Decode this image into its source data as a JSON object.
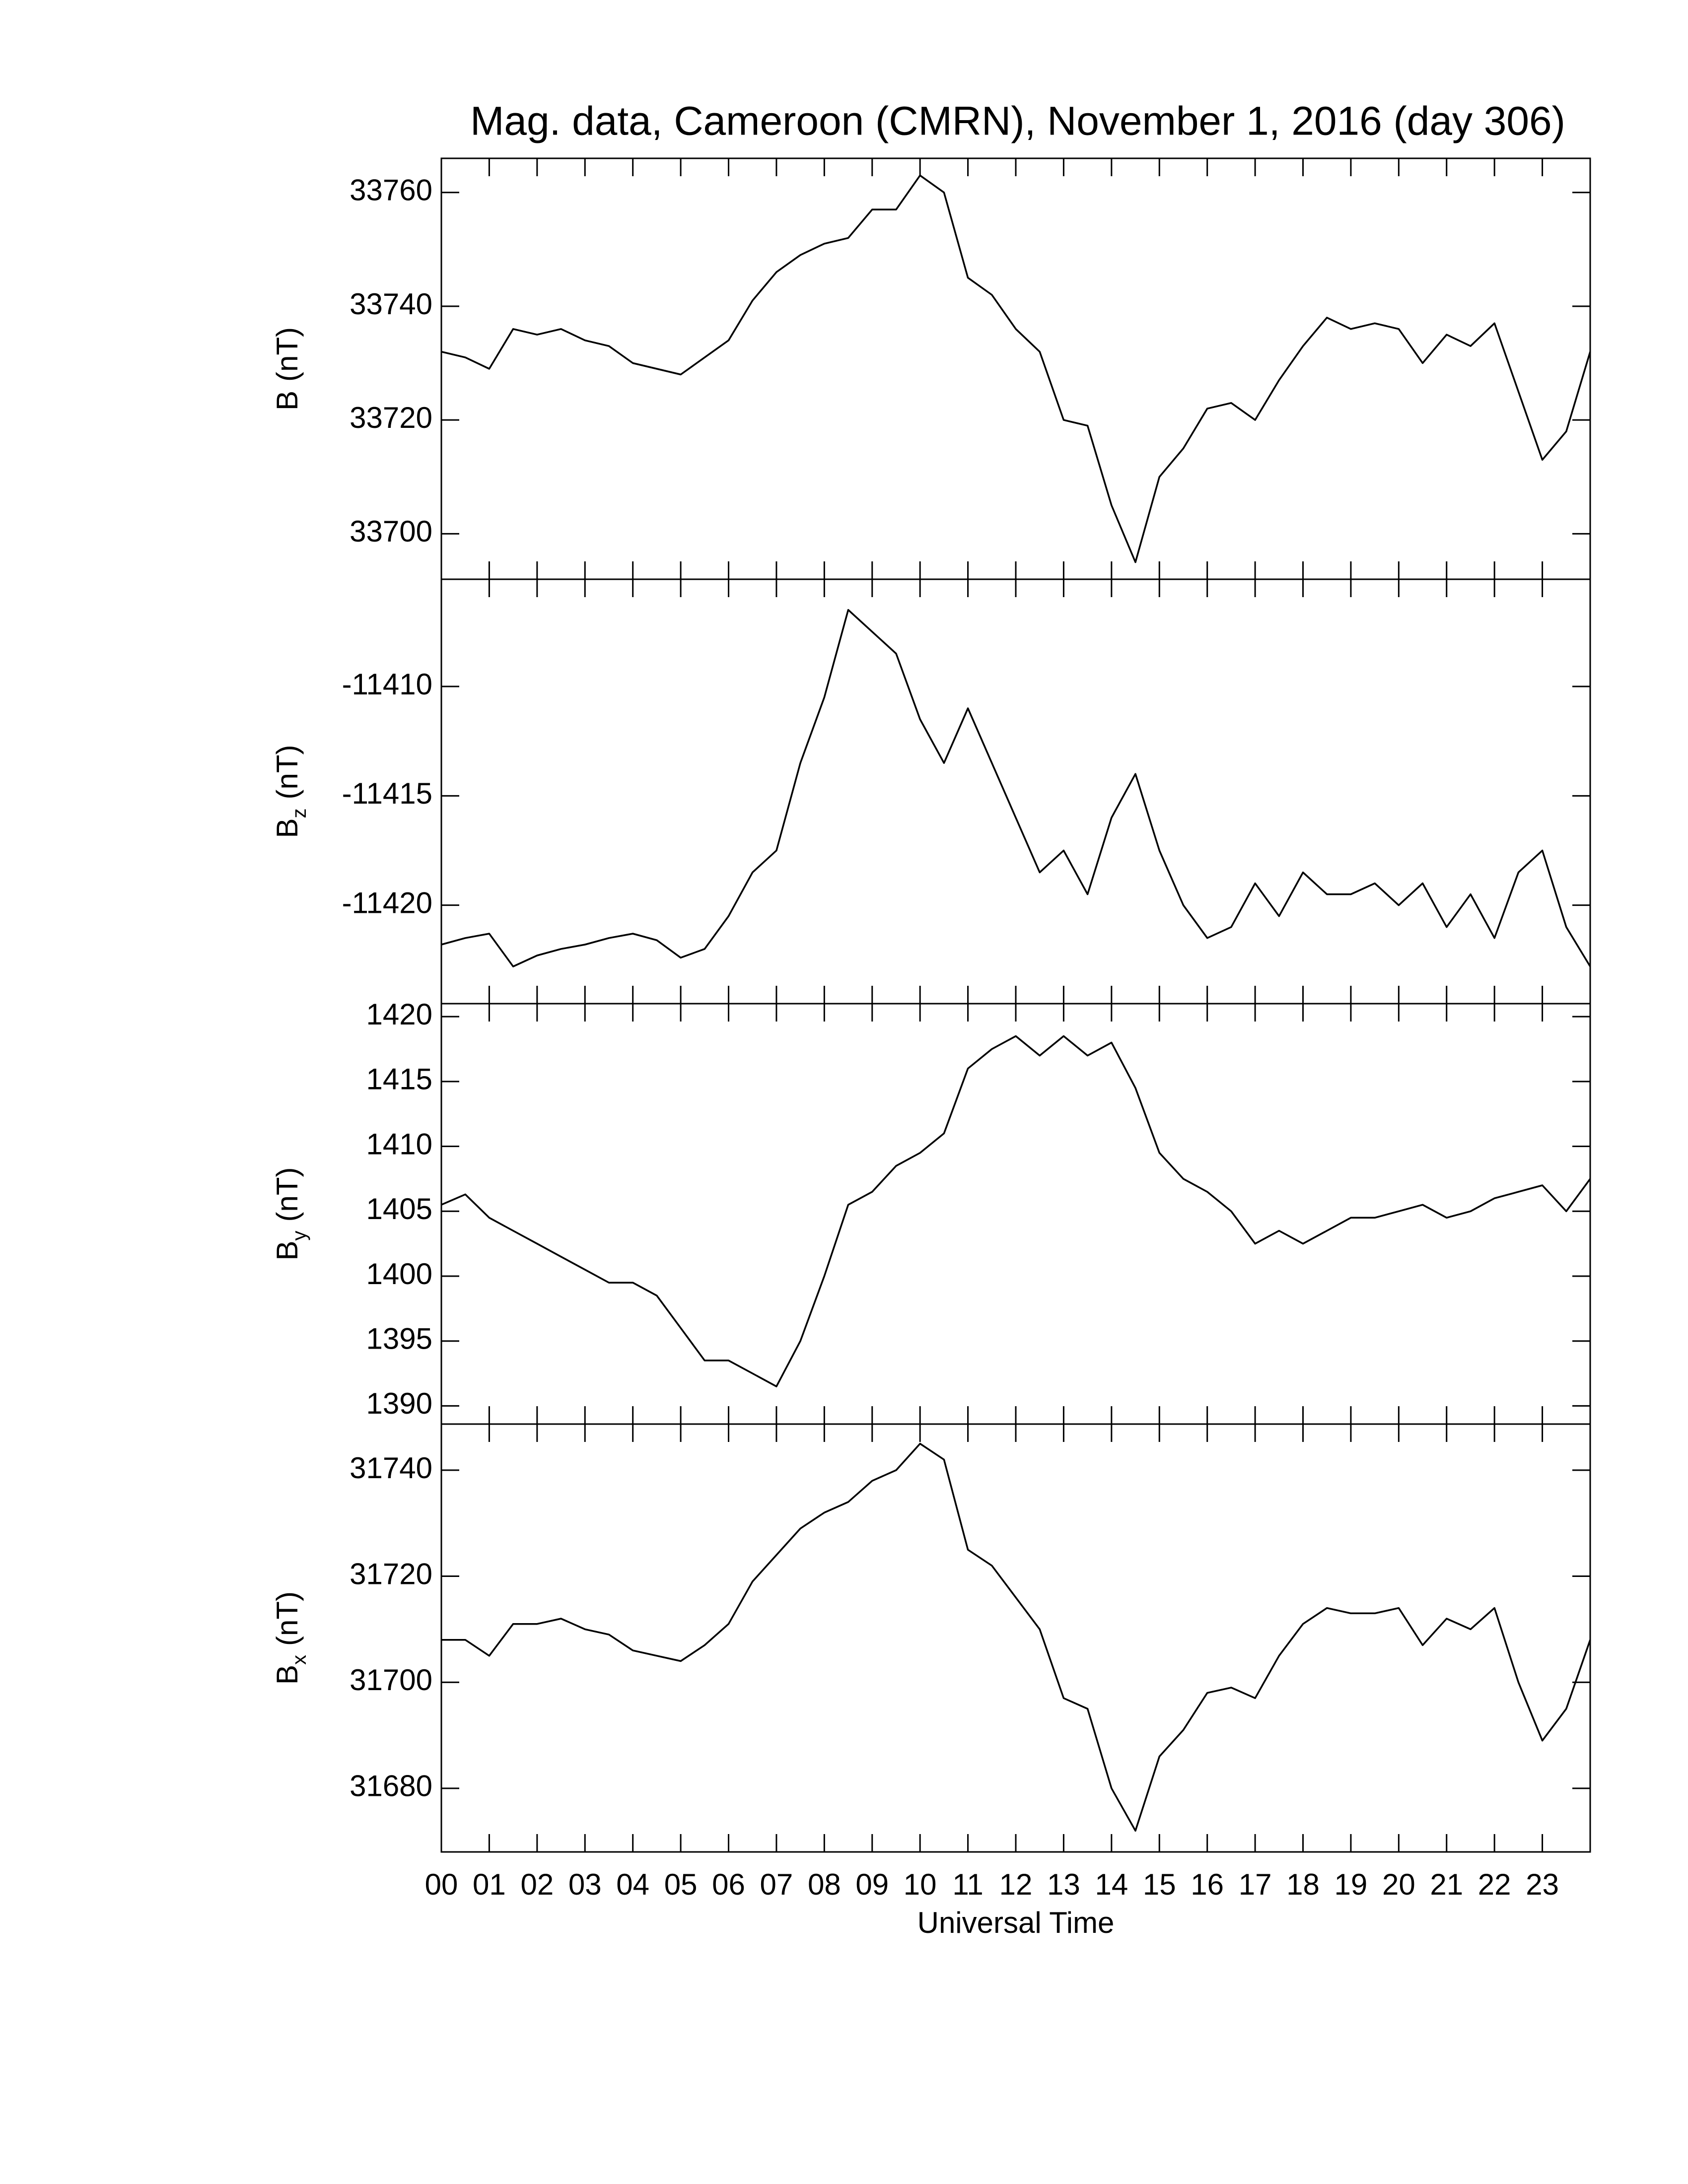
{
  "chart_data": [
    {
      "type": "line",
      "title": "Mag. data, Cameroon (CMRN), November 1, 2016 (day 306)",
      "ylabel": "B",
      "ylabel_unit": "(nT)",
      "color": "#000000",
      "x": [
        0,
        0.5,
        1,
        1.5,
        2,
        2.5,
        3,
        3.5,
        4,
        4.5,
        5,
        5.5,
        6,
        6.5,
        7,
        7.5,
        8,
        8.5,
        9,
        9.5,
        10,
        10.5,
        11,
        11.5,
        12,
        12.5,
        13,
        13.5,
        14,
        14.5,
        15,
        15.5,
        16,
        16.5,
        17,
        17.5,
        18,
        18.5,
        19,
        19.5,
        20,
        20.5,
        21,
        21.5,
        22,
        22.5,
        23,
        23.5,
        24
      ],
      "values": [
        33732,
        33731,
        33729,
        33736,
        33735,
        33736,
        33734,
        33733,
        33730,
        33729,
        33728,
        33731,
        33734,
        33741,
        33746,
        33749,
        33751,
        33752,
        33757,
        33757,
        33763,
        33760,
        33745,
        33742,
        33736,
        33732,
        33720,
        33719,
        33705,
        33695,
        33710,
        33715,
        33722,
        33723,
        33720,
        33727,
        33733,
        33738,
        33736,
        33737,
        33736,
        33730,
        33735,
        33733,
        33737,
        33725,
        33713,
        33718,
        33732
      ],
      "xlim": [
        0,
        24
      ],
      "ylim": [
        33692,
        33766
      ],
      "yticks": [
        33700,
        33720,
        33740,
        33760
      ]
    },
    {
      "type": "line",
      "ylabel": "B",
      "ylabel_subscript": "z",
      "ylabel_unit": "(nT)",
      "color": "#000000",
      "x": [
        0,
        0.5,
        1,
        1.5,
        2,
        2.5,
        3,
        3.5,
        4,
        4.5,
        5,
        5.5,
        6,
        6.5,
        7,
        7.5,
        8,
        8.5,
        9,
        9.5,
        10,
        10.5,
        11,
        11.5,
        12,
        12.5,
        13,
        13.5,
        14,
        14.5,
        15,
        15.5,
        16,
        16.5,
        17,
        17.5,
        18,
        18.5,
        19,
        19.5,
        20,
        20.5,
        21,
        21.5,
        22,
        22.5,
        23,
        23.5,
        24
      ],
      "values": [
        -11421.8,
        -11421.5,
        -11421.3,
        -11422.8,
        -11422.3,
        -11422,
        -11421.8,
        -11421.5,
        -11421.3,
        -11421.6,
        -11422.4,
        -11422,
        -11420.5,
        -11418.5,
        -11417.5,
        -11413.5,
        -11410.5,
        -11406.5,
        -11407.5,
        -11408.5,
        -11411.5,
        -11413.5,
        -11411,
        -11413.5,
        -11416,
        -11418.5,
        -11417.5,
        -11419.5,
        -11416,
        -11414,
        -11417.5,
        -11420,
        -11421.5,
        -11421,
        -11419,
        -11420.5,
        -11418.5,
        -11419.5,
        -11419.5,
        -11419,
        -11420,
        -11419,
        -11421,
        -11419.5,
        -11421.5,
        -11418.5,
        -11417.5,
        -11421,
        -11422.8
      ],
      "xlim": [
        0,
        24
      ],
      "ylim": [
        -11424.5,
        -11405.1
      ],
      "yticks": [
        -11420,
        -11415,
        -11410
      ]
    },
    {
      "type": "line",
      "ylabel": "B",
      "ylabel_subscript": "y",
      "ylabel_unit": "(nT)",
      "color": "#000000",
      "x": [
        0,
        0.5,
        1,
        1.5,
        2,
        2.5,
        3,
        3.5,
        4,
        4.5,
        5,
        5.5,
        6,
        6.5,
        7,
        7.5,
        8,
        8.5,
        9,
        9.5,
        10,
        10.5,
        11,
        11.5,
        12,
        12.5,
        13,
        13.5,
        14,
        14.5,
        15,
        15.5,
        16,
        16.5,
        17,
        17.5,
        18,
        18.5,
        19,
        19.5,
        20,
        20.5,
        21,
        21.5,
        22,
        22.5,
        23,
        23.5,
        24
      ],
      "values": [
        1405.5,
        1406.3,
        1404.5,
        1403.5,
        1402.5,
        1401.5,
        1400.5,
        1399.5,
        1399.5,
        1398.5,
        1396,
        1393.5,
        1393.5,
        1392.5,
        1391.5,
        1395,
        1400,
        1405.5,
        1406.5,
        1408.5,
        1409.5,
        1411,
        1416,
        1417.5,
        1418.5,
        1417,
        1418.5,
        1417,
        1418,
        1414.5,
        1409.5,
        1407.5,
        1406.5,
        1405,
        1402.5,
        1403.5,
        1402.5,
        1403.5,
        1404.5,
        1404.5,
        1405,
        1405.5,
        1404.5,
        1405,
        1406,
        1406.5,
        1407,
        1405,
        1407.5
      ],
      "xlim": [
        0,
        24
      ],
      "ylim": [
        1388.6,
        1421
      ],
      "yticks": [
        1390,
        1395,
        1400,
        1405,
        1410,
        1415,
        1420
      ]
    },
    {
      "type": "line",
      "ylabel": "B",
      "ylabel_subscript": "x",
      "ylabel_unit": "(nT)",
      "xlabel": "Universal Time",
      "color": "#000000",
      "x": [
        0,
        0.5,
        1,
        1.5,
        2,
        2.5,
        3,
        3.5,
        4,
        4.5,
        5,
        5.5,
        6,
        6.5,
        7,
        7.5,
        8,
        8.5,
        9,
        9.5,
        10,
        10.5,
        11,
        11.5,
        12,
        12.5,
        13,
        13.5,
        14,
        14.5,
        15,
        15.5,
        16,
        16.5,
        17,
        17.5,
        18,
        18.5,
        19,
        19.5,
        20,
        20.5,
        21,
        21.5,
        22,
        22.5,
        23,
        23.5,
        24
      ],
      "values": [
        31708,
        31708,
        31705,
        31711,
        31711,
        31712,
        31710,
        31709,
        31706,
        31705,
        31704,
        31707,
        31711,
        31719,
        31724,
        31729,
        31732,
        31734,
        31738,
        31740,
        31745,
        31742,
        31725,
        31722,
        31716,
        31710,
        31697,
        31695,
        31680,
        31672,
        31686,
        31691,
        31698,
        31699,
        31697,
        31705,
        31711,
        31714,
        31713,
        31713,
        31714,
        31707,
        31712,
        31710,
        31714,
        31700,
        31689,
        31695,
        31708
      ],
      "xlim": [
        0,
        24
      ],
      "ylim": [
        31668,
        31748.7
      ],
      "yticks": [
        31680,
        31700,
        31720,
        31740
      ],
      "xticks": [
        {
          "value": 0,
          "label": "00"
        },
        {
          "value": 1,
          "label": "01"
        },
        {
          "value": 2,
          "label": "02"
        },
        {
          "value": 3,
          "label": "03"
        },
        {
          "value": 4,
          "label": "04"
        },
        {
          "value": 5,
          "label": "05"
        },
        {
          "value": 6,
          "label": "06"
        },
        {
          "value": 7,
          "label": "07"
        },
        {
          "value": 8,
          "label": "08"
        },
        {
          "value": 9,
          "label": "09"
        },
        {
          "value": 10,
          "label": "10"
        },
        {
          "value": 11,
          "label": "11"
        },
        {
          "value": 12,
          "label": "12"
        },
        {
          "value": 13,
          "label": "13"
        },
        {
          "value": 14,
          "label": "14"
        },
        {
          "value": 15,
          "label": "15"
        },
        {
          "value": 16,
          "label": "16"
        },
        {
          "value": 17,
          "label": "17"
        },
        {
          "value": 18,
          "label": "18"
        },
        {
          "value": 19,
          "label": "19"
        },
        {
          "value": 20,
          "label": "20"
        },
        {
          "value": 21,
          "label": "21"
        },
        {
          "value": 22,
          "label": "22"
        },
        {
          "value": 23,
          "label": "23"
        }
      ]
    }
  ]
}
